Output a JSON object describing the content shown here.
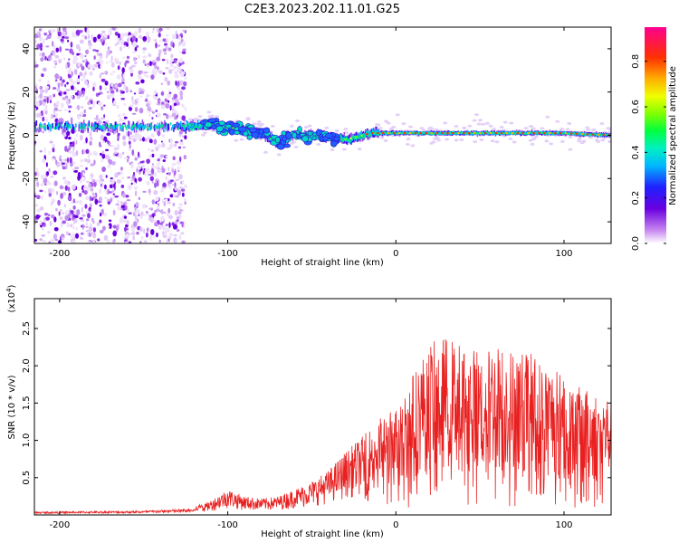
{
  "title": "C2E3.2023.202.11.01.G25",
  "chart_data": [
    {
      "type": "heatmap",
      "xlabel": "Height of straight line (km)",
      "ylabel": "Frequency (Hz)",
      "xlim": [
        -215,
        128
      ],
      "ylim": [
        -50,
        50
      ],
      "xticks": [
        -200,
        -100,
        0,
        100
      ],
      "yticks": [
        -40,
        -20,
        0,
        20,
        40
      ],
      "colorbar": {
        "label": "Normalized spectral amplitude",
        "range": [
          0,
          0.95
        ],
        "ticks": [
          "0.0",
          "0.2",
          "0.4",
          "0.6",
          "0.8"
        ]
      },
      "features": {
        "noise_region_x": [
          -215,
          -125
        ],
        "line_track": [
          [
            -215,
            4
          ],
          [
            -150,
            4
          ],
          [
            -125,
            4
          ],
          [
            -110,
            5
          ],
          [
            -95,
            3
          ],
          [
            -80,
            1
          ],
          [
            -70,
            -3
          ],
          [
            -60,
            0
          ],
          [
            -45,
            0
          ],
          [
            -30,
            -2
          ],
          [
            -20,
            0
          ],
          [
            -15,
            1
          ],
          [
            0,
            1
          ],
          [
            50,
            1
          ],
          [
            100,
            1
          ],
          [
            128,
            0
          ]
        ]
      }
    },
    {
      "type": "line",
      "xlabel": "Height of straight line (km)",
      "ylabel": "SNR (10 * v/v)",
      "yscale_label": "(x10",
      "yscale_exp": "4",
      "yscale_close": ")",
      "xlim": [
        -215,
        128
      ],
      "ylim": [
        0,
        2.9
      ],
      "xticks": [
        -200,
        -100,
        0,
        100
      ],
      "yticks": [
        "0.5",
        "1.0",
        "1.5",
        "2.0",
        "2.5"
      ],
      "color": "#e82020",
      "envelope": [
        [
          -215,
          0.03
        ],
        [
          -150,
          0.04
        ],
        [
          -120,
          0.06
        ],
        [
          -110,
          0.2
        ],
        [
          -100,
          0.35
        ],
        [
          -90,
          0.25
        ],
        [
          -80,
          0.22
        ],
        [
          -70,
          0.25
        ],
        [
          -60,
          0.35
        ],
        [
          -50,
          0.45
        ],
        [
          -40,
          0.6
        ],
        [
          -30,
          0.85
        ],
        [
          -20,
          1.05
        ],
        [
          -10,
          1.3
        ],
        [
          0,
          1.45
        ],
        [
          10,
          1.9
        ],
        [
          20,
          2.3
        ],
        [
          30,
          2.4
        ],
        [
          40,
          2.3
        ],
        [
          50,
          2.2
        ],
        [
          60,
          2.3
        ],
        [
          70,
          2.2
        ],
        [
          80,
          2.2
        ],
        [
          90,
          2.0
        ],
        [
          100,
          1.9
        ],
        [
          110,
          1.7
        ],
        [
          128,
          1.6
        ]
      ]
    }
  ]
}
